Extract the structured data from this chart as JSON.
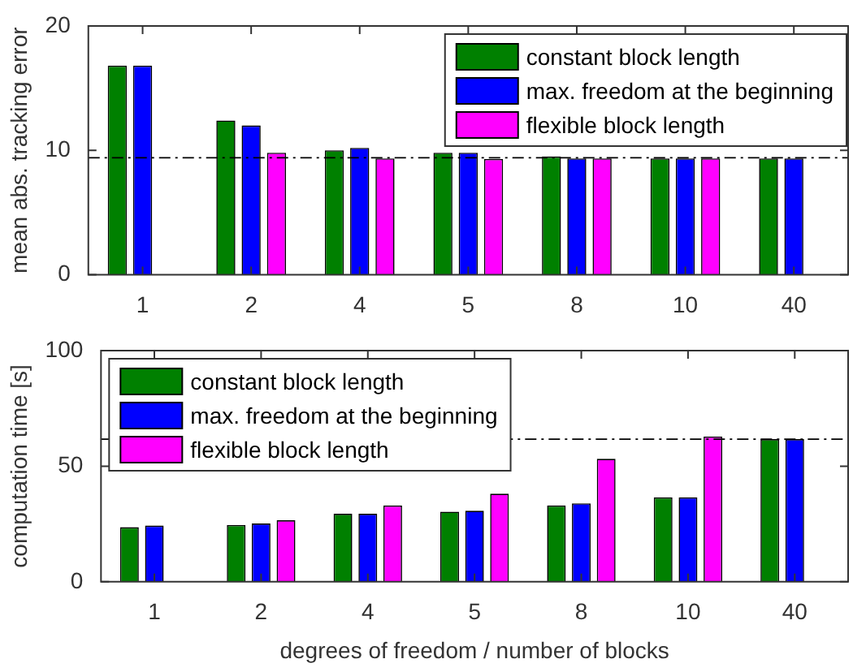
{
  "chart_data": [
    {
      "type": "bar",
      "ylabel": "mean abs. tracking error",
      "categories": [
        "1",
        "2",
        "4",
        "5",
        "8",
        "10",
        "40"
      ],
      "ylim": [
        0,
        20
      ],
      "yticks": [
        0,
        10,
        20
      ],
      "grid": false,
      "legend": "top right",
      "ref_lines": [
        {
          "axis": "y",
          "value": 9.4
        }
      ],
      "series": [
        {
          "name": "constant block length",
          "color": "#008000",
          "values": [
            16.8,
            12.4,
            10.0,
            9.8,
            9.5,
            9.35,
            9.35
          ]
        },
        {
          "name": "max. freedom at the beginning",
          "color": "#0000ff",
          "values": [
            16.8,
            12.0,
            10.2,
            9.8,
            9.35,
            9.35,
            9.35
          ]
        },
        {
          "name": "flexible block length",
          "color": "#ff00ff",
          "values": [
            0,
            9.8,
            9.35,
            9.3,
            9.35,
            9.35,
            0
          ]
        }
      ]
    },
    {
      "type": "bar",
      "ylabel": "computation time [s]",
      "xlabel": "degrees of freedom / number of blocks",
      "categories": [
        "1",
        "2",
        "4",
        "5",
        "8",
        "10",
        "40"
      ],
      "ylim": [
        0,
        100
      ],
      "yticks": [
        0,
        50,
        100
      ],
      "grid": false,
      "legend": "top left",
      "ref_lines": [
        {
          "axis": "y",
          "value": 61.7
        }
      ],
      "series": [
        {
          "name": "constant block length",
          "color": "#008000",
          "values": [
            23.6,
            24.5,
            29.4,
            30.3,
            33.0,
            36.5,
            61.7
          ]
        },
        {
          "name": "max. freedom at the beginning",
          "color": "#0000ff",
          "values": [
            24.3,
            25.2,
            29.4,
            30.7,
            33.9,
            36.5,
            61.7
          ]
        },
        {
          "name": "flexible block length",
          "color": "#ff00ff",
          "values": [
            0,
            26.6,
            33.0,
            38.1,
            53.2,
            62.8,
            0
          ]
        }
      ]
    }
  ]
}
